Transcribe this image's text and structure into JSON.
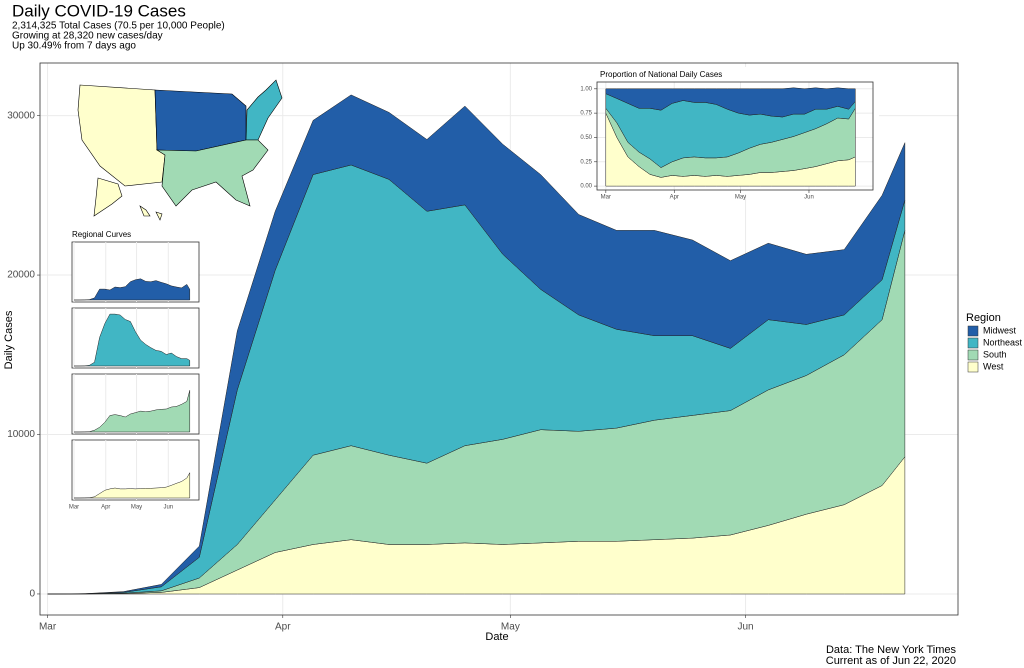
{
  "chart_data": [
    {
      "type": "area",
      "stacked": true,
      "title": "Daily COVID-19 Cases",
      "subtitle": [
        "2,314,325 Total Cases (70.5 per 10,000 People)",
        "Growing at 28,320 new cases/day",
        "Up 30.49% from 7 days ago"
      ],
      "xlabel": "Date",
      "ylabel": "Daily Cases",
      "caption": [
        "Data: The New York Times",
        "Current as of Jun 22, 2020"
      ],
      "legend_title": "Region",
      "legend": "right",
      "grid": true,
      "inset_title": "Regional Curves",
      "x": [
        0,
        5,
        10,
        15,
        20,
        25,
        30,
        35,
        40,
        45,
        50,
        55,
        60,
        65,
        70,
        75,
        80,
        85,
        90,
        95,
        100,
        105,
        110,
        113
      ],
      "xlim": [
        -1,
        120
      ],
      "xticks": [
        {
          "value": 0,
          "label": "Mar"
        },
        {
          "value": 31,
          "label": "Apr"
        },
        {
          "value": 61,
          "label": "May"
        },
        {
          "value": 92,
          "label": "Jun"
        }
      ],
      "ylim": [
        -1320,
        33300
      ],
      "yticks": [
        0,
        10000,
        20000,
        30000
      ],
      "series": [
        {
          "name": "Midwest",
          "color": "#225ea8",
          "values": [
            0,
            5,
            50,
            150,
            700,
            3700,
            3700,
            3400,
            4400,
            4200,
            4500,
            6200,
            6900,
            7200,
            6300,
            6200,
            6600,
            6000,
            5500,
            4800,
            4400,
            4100,
            5300,
            3600
          ]
        },
        {
          "name": "Northeast",
          "color": "#41b6c4",
          "values": [
            0,
            7,
            50,
            250,
            1300,
            9700,
            14400,
            17600,
            17600,
            17300,
            15800,
            15100,
            11600,
            8800,
            7300,
            6200,
            5300,
            5000,
            3900,
            4400,
            3200,
            2500,
            2500,
            1900
          ]
        },
        {
          "name": "South",
          "color": "#a1dab4",
          "values": [
            0,
            4,
            25,
            100,
            600,
            1600,
            3300,
            5600,
            5900,
            5600,
            5100,
            6100,
            6600,
            7100,
            6900,
            7100,
            7500,
            7700,
            7800,
            8500,
            8700,
            9400,
            10400,
            14200
          ]
        },
        {
          "name": "West",
          "color": "#ffffcc",
          "values": [
            0,
            4,
            25,
            100,
            400,
            1500,
            2600,
            3100,
            3400,
            3100,
            3100,
            3200,
            3100,
            3200,
            3300,
            3300,
            3400,
            3500,
            3700,
            4300,
            5000,
            5600,
            6800,
            8600
          ]
        }
      ]
    },
    {
      "type": "area",
      "stacked": true,
      "title": "Proportion of National Daily Cases",
      "x": [
        0,
        5,
        10,
        15,
        20,
        25,
        30,
        35,
        40,
        45,
        50,
        55,
        60,
        65,
        70,
        75,
        80,
        85,
        90,
        95,
        100,
        105,
        110,
        113
      ],
      "xlim": [
        -4,
        121
      ],
      "xticks": [
        {
          "value": 0,
          "label": "Mar"
        },
        {
          "value": 31,
          "label": "Apr"
        },
        {
          "value": 61,
          "label": "May"
        },
        {
          "value": 92,
          "label": "Jun"
        }
      ],
      "ylim": [
        -0.04,
        1.07
      ],
      "yticks": [
        {
          "value": 0,
          "label": "0.00"
        },
        {
          "value": 0.25,
          "label": "0.25"
        },
        {
          "value": 0.5,
          "label": "0.50"
        },
        {
          "value": 0.75,
          "label": "0.75"
        },
        {
          "value": 1,
          "label": "1.00"
        }
      ],
      "series": [
        {
          "color": "#225ea8",
          "values": [
            0.05,
            0.1,
            0.15,
            0.2,
            0.2,
            0.22,
            0.15,
            0.12,
            0.14,
            0.14,
            0.16,
            0.21,
            0.25,
            0.27,
            0.26,
            0.28,
            0.29,
            0.27,
            0.26,
            0.22,
            0.21,
            0.19,
            0.21,
            0.13
          ]
        },
        {
          "color": "#41b6c4",
          "values": [
            0.15,
            0.25,
            0.4,
            0.45,
            0.52,
            0.59,
            0.6,
            0.59,
            0.56,
            0.57,
            0.55,
            0.49,
            0.41,
            0.34,
            0.31,
            0.27,
            0.23,
            0.23,
            0.19,
            0.2,
            0.15,
            0.12,
            0.1,
            0.07
          ]
        },
        {
          "color": "#a1dab4",
          "values": [
            0.05,
            0.15,
            0.15,
            0.15,
            0.16,
            0.1,
            0.14,
            0.19,
            0.19,
            0.19,
            0.18,
            0.2,
            0.23,
            0.27,
            0.29,
            0.31,
            0.33,
            0.35,
            0.37,
            0.39,
            0.41,
            0.44,
            0.42,
            0.5
          ]
        },
        {
          "color": "#ffffcc",
          "values": [
            0.75,
            0.5,
            0.3,
            0.2,
            0.12,
            0.09,
            0.11,
            0.1,
            0.11,
            0.1,
            0.11,
            0.1,
            0.11,
            0.12,
            0.14,
            0.14,
            0.15,
            0.16,
            0.18,
            0.2,
            0.23,
            0.26,
            0.27,
            0.3
          ]
        }
      ]
    }
  ]
}
